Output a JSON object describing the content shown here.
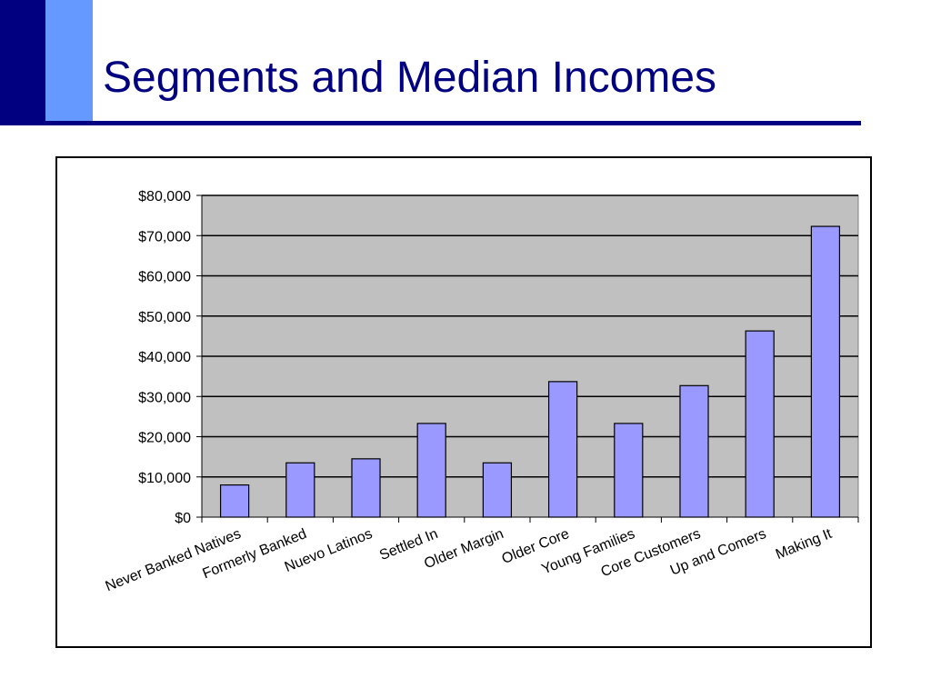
{
  "slide": {
    "title": "Segments and Median Incomes",
    "colors": {
      "dark_accent": "#000080",
      "light_accent": "#6699ff"
    }
  },
  "chart_data": {
    "type": "bar",
    "title": "",
    "xlabel": "",
    "ylabel": "",
    "categories": [
      "Never Banked Natives",
      "Formerly Banked",
      "Nuevo Latinos",
      "Settled In",
      "Older Margin",
      "Older Core",
      "Young Families",
      "Core Customers",
      "Up and Comers",
      "Making It"
    ],
    "values": [
      8000,
      13500,
      14500,
      23300,
      13500,
      33700,
      23300,
      32700,
      46300,
      72300
    ],
    "ylim": [
      0,
      80000
    ],
    "yticks": [
      0,
      10000,
      20000,
      30000,
      40000,
      50000,
      60000,
      70000,
      80000
    ],
    "ytick_labels": [
      "$0",
      "$10,000",
      "$20,000",
      "$30,000",
      "$40,000",
      "$50,000",
      "$60,000",
      "$70,000",
      "$80,000"
    ],
    "grid": true,
    "legend": "none",
    "colors": {
      "plot_background": "#c0c0c0",
      "bar_fill": "#9999ff",
      "bar_stroke": "#000000",
      "gridline": "#000000"
    }
  }
}
